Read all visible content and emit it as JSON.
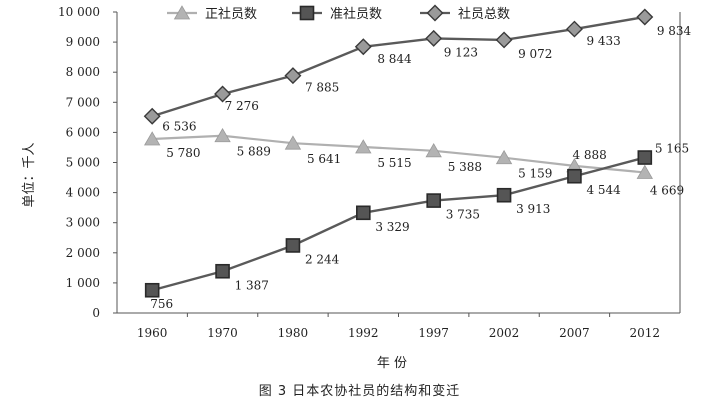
{
  "caption": "图 3   日本农协社员的结构和变迁",
  "chart_data": {
    "type": "line",
    "title": "",
    "xlabel": "年  份",
    "ylabel": "单位：千人",
    "categories": [
      "1960",
      "1970",
      "1980",
      "1992",
      "1997",
      "2002",
      "2007",
      "2012"
    ],
    "ylim": [
      0,
      10000
    ],
    "yticks": [
      0,
      1000,
      2000,
      3000,
      4000,
      5000,
      6000,
      7000,
      8000,
      9000,
      10000
    ],
    "ytick_labels": [
      "0",
      "1 000",
      "2 000",
      "3 000",
      "4 000",
      "5 000",
      "6 000",
      "7 000",
      "8 000",
      "9 000",
      "10 000"
    ],
    "grid": false,
    "legend_position": "top",
    "series": [
      {
        "name": "正社员数",
        "marker": "triangle",
        "color": "#b3b3b3",
        "values": [
          5780,
          5889,
          5641,
          5515,
          5388,
          5159,
          4888,
          4669
        ],
        "labels": [
          "5 780",
          "5 889",
          "5 641",
          "5 515",
          "5 388",
          "5 159",
          "4 888",
          "4 669"
        ]
      },
      {
        "name": "准社员数",
        "marker": "square",
        "color": "#555555",
        "values": [
          756,
          1387,
          2244,
          3329,
          3735,
          3913,
          4544,
          5165
        ],
        "labels": [
          "756",
          "1 387",
          "2 244",
          "3 329",
          "3 735",
          "3 913",
          "4 544",
          "5 165"
        ]
      },
      {
        "name": "社员总数",
        "marker": "diamond",
        "color": "#666666",
        "values": [
          6536,
          7276,
          7885,
          8844,
          9123,
          9072,
          9433,
          9834
        ],
        "labels": [
          "6 536",
          "7 276",
          "7 885",
          "8 844",
          "9 123",
          "9 072",
          "9 433",
          "9 834"
        ]
      }
    ]
  }
}
